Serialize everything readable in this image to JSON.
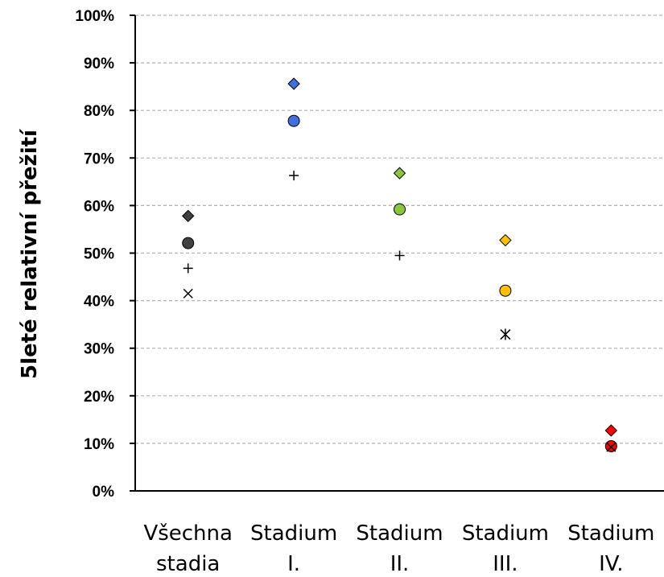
{
  "chart_data": {
    "type": "scatter",
    "title": "",
    "xlabel": "",
    "ylabel": "5leté relativní přežití",
    "ylim": [
      0,
      100
    ],
    "y_ticks": [
      "0%",
      "10%",
      "20%",
      "30%",
      "40%",
      "50%",
      "60%",
      "70%",
      "80%",
      "90%",
      "100%"
    ],
    "grid": true,
    "legend": "none",
    "categories": [
      [
        "Všechna",
        "stadia"
      ],
      [
        "Stadium",
        "I."
      ],
      [
        "Stadium",
        "II."
      ],
      [
        "Stadium",
        "III."
      ],
      [
        "Stadium",
        "IV."
      ]
    ],
    "category_colors": [
      "#404040",
      "#3f6fe0",
      "#8cc63f",
      "#ffc000",
      "#ff0000"
    ],
    "series": [
      {
        "marker": "diamond",
        "values": [
          57.8,
          85.6,
          66.8,
          52.7,
          12.7
        ]
      },
      {
        "marker": "circle",
        "values": [
          52.1,
          77.8,
          59.2,
          42.1,
          9.4
        ]
      },
      {
        "marker": "plus",
        "values": [
          46.8,
          66.3,
          49.5,
          null,
          null
        ]
      },
      {
        "marker": "x",
        "values": [
          41.5,
          null,
          null,
          null,
          9.2
        ]
      },
      {
        "marker": "asterisk",
        "values": [
          null,
          null,
          null,
          32.9,
          null
        ]
      }
    ]
  }
}
